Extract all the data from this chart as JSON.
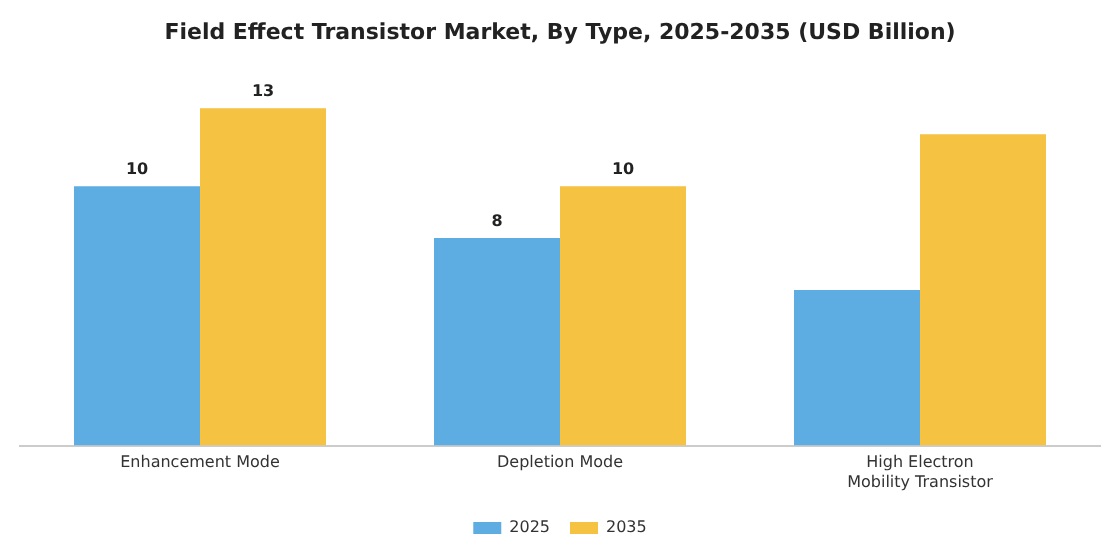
{
  "chart_data": {
    "type": "bar",
    "title": "Field Effect Transistor Market, By Type, 2025-2035 (USD Billion)",
    "categories": [
      "Enhancement Mode",
      "Depletion Mode",
      "High Electron Mobility Transistor"
    ],
    "series": [
      {
        "name": "2025",
        "color": "#5dade2",
        "values": [
          10,
          8,
          6
        ],
        "value_labels": [
          "10",
          "8",
          null
        ]
      },
      {
        "name": "2035",
        "color": "#f5c242",
        "values": [
          13,
          10,
          12
        ],
        "value_labels": [
          "13",
          "10",
          null
        ]
      }
    ],
    "grid": false,
    "legend": "bottom"
  }
}
